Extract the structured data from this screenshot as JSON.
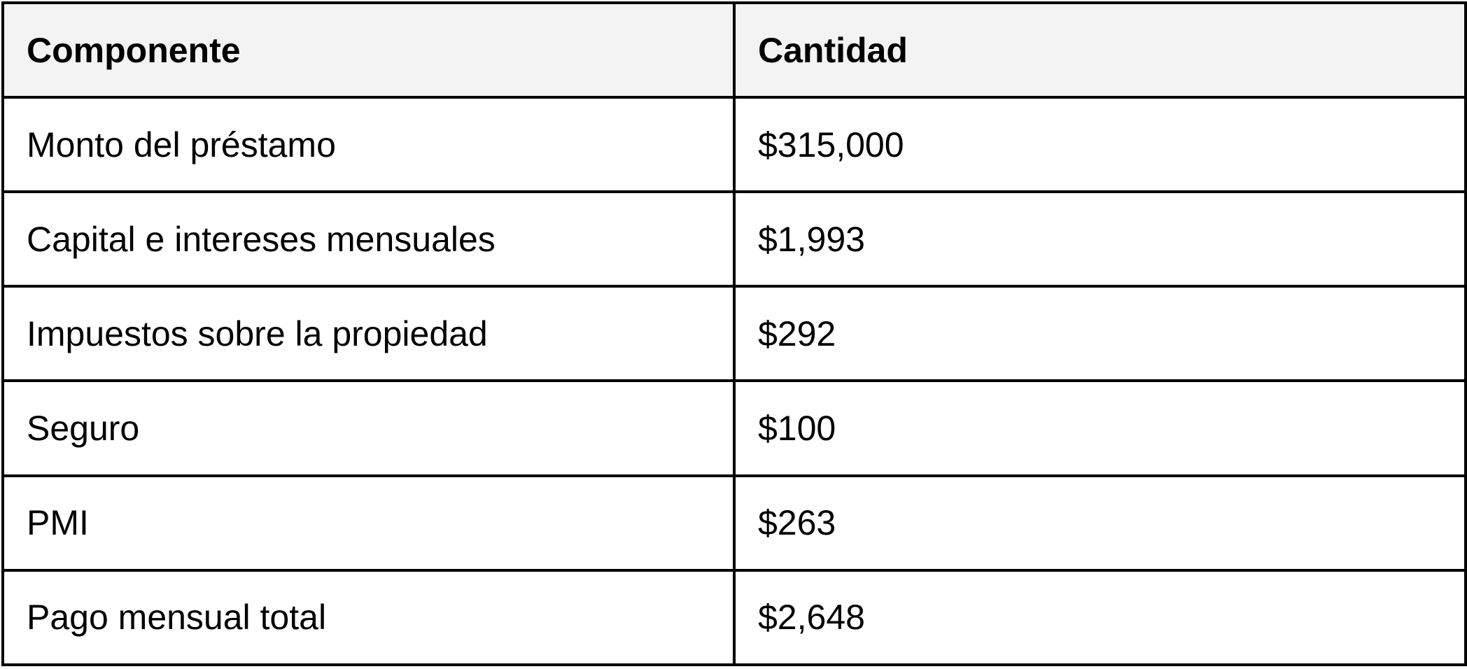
{
  "table": {
    "headers": [
      "Componente",
      "Cantidad"
    ],
    "rows": [
      [
        "Monto del préstamo",
        "$315,000"
      ],
      [
        "Capital e intereses mensuales",
        "$1,993"
      ],
      [
        "Impuestos sobre la propiedad",
        "$292"
      ],
      [
        "Seguro",
        "$100"
      ],
      [
        "PMI",
        "$263"
      ],
      [
        "Pago mensual total",
        "$2,648"
      ]
    ]
  },
  "colors": {
    "header_background": "#f3f3f3",
    "border": "#000000",
    "text": "#000000",
    "background": "#ffffff"
  }
}
